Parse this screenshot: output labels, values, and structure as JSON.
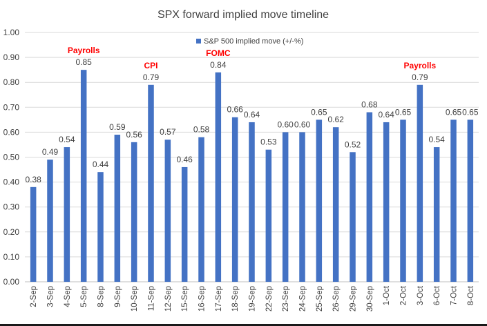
{
  "chart_data": {
    "type": "bar",
    "title": "SPX forward implied move timeline",
    "categories": [
      "2-Sep",
      "3-Sep",
      "4-Sep",
      "5-Sep",
      "8-Sep",
      "9-Sep",
      "10-Sep",
      "11-Sep",
      "12-Sep",
      "15-Sep",
      "16-Sep",
      "17-Sep",
      "18-Sep",
      "19-Sep",
      "22-Sep",
      "23-Sep",
      "24-Sep",
      "25-Sep",
      "26-Sep",
      "29-Sep",
      "30-Sep",
      "1-Oct",
      "2-Oct",
      "3-Oct",
      "6-Oct",
      "7-Oct",
      "8-Oct"
    ],
    "series": [
      {
        "name": "S&P 500 implied move (+/-%)",
        "values": [
          0.38,
          0.49,
          0.54,
          0.85,
          0.44,
          0.59,
          0.56,
          0.79,
          0.57,
          0.46,
          0.58,
          0.84,
          0.66,
          0.64,
          0.53,
          0.6,
          0.6,
          0.65,
          0.62,
          0.52,
          0.68,
          0.64,
          0.65,
          0.79,
          0.54,
          0.65,
          0.65
        ],
        "color": "#4472c4"
      }
    ],
    "data_labels": [
      "0.38",
      "0.49",
      "0.54",
      "0.85",
      "0.44",
      "0.59",
      "0.56",
      "0.79",
      "0.57",
      "0.46",
      "0.58",
      "0.84",
      "0.66",
      "0.64",
      "0.53",
      "0.60",
      "0.60",
      "0.65",
      "0.62",
      "0.52",
      "0.68",
      "0.64",
      "0.65",
      "0.79",
      "0.54",
      "0.65",
      "0.65"
    ],
    "annotations": [
      {
        "category": "5-Sep",
        "text": "Payrolls"
      },
      {
        "category": "11-Sep",
        "text": "CPI"
      },
      {
        "category": "17-Sep",
        "text": "FOMC"
      },
      {
        "category": "3-Oct",
        "text": "Payrolls"
      }
    ],
    "annotation_color": "#ff0000",
    "yticks": [
      "0.00",
      "0.10",
      "0.20",
      "0.30",
      "0.40",
      "0.50",
      "0.60",
      "0.70",
      "0.80",
      "0.90",
      "1.00"
    ],
    "ylim": [
      0,
      1.0
    ],
    "grid": true,
    "legend_position": "top-center",
    "xlabel": "",
    "ylabel": ""
  }
}
